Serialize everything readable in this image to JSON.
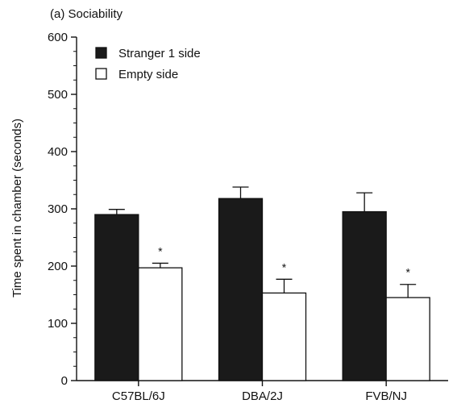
{
  "chart_data": {
    "type": "bar",
    "title": "(a) Sociability",
    "xlabel": "",
    "ylabel": "Time spent in chamber (seconds)",
    "ylim": [
      0,
      600
    ],
    "yticks": [
      0,
      100,
      200,
      300,
      400,
      500,
      600
    ],
    "categories": [
      "C57BL/6J",
      "DBA/2J",
      "FVB/NJ"
    ],
    "legend_position": "top-left",
    "grid": false,
    "series": [
      {
        "name": "Stranger 1 side",
        "fill": "#1a1a1a",
        "values": [
          290,
          318,
          295
        ],
        "errors": [
          9,
          20,
          33
        ]
      },
      {
        "name": "Empty side",
        "fill": "#ffffff",
        "values": [
          197,
          153,
          145
        ],
        "errors": [
          8,
          24,
          23
        ]
      }
    ],
    "significance": [
      {
        "category": "C57BL/6J",
        "series": "Empty side",
        "label": "*"
      },
      {
        "category": "DBA/2J",
        "series": "Empty side",
        "label": "*"
      },
      {
        "category": "FVB/NJ",
        "series": "Empty side",
        "label": "*"
      }
    ]
  }
}
